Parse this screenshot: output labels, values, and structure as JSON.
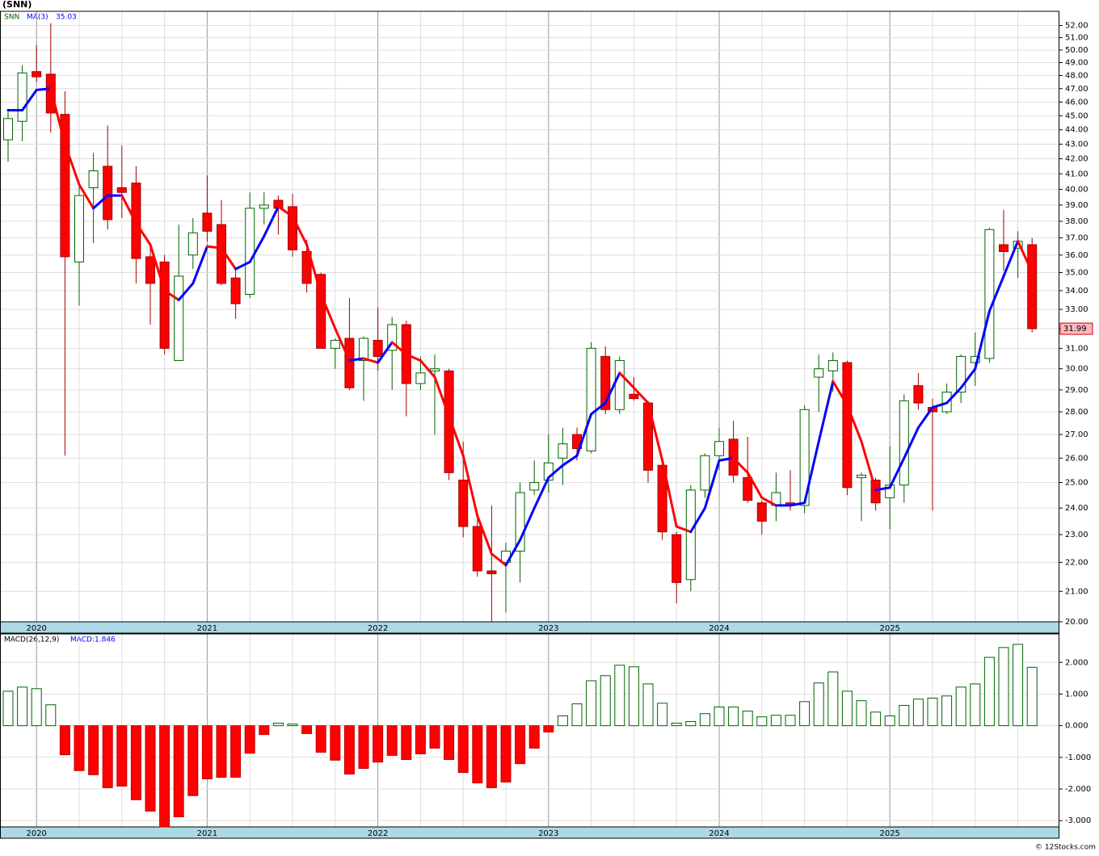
{
  "chart_data": [
    {
      "type": "candlestick",
      "title": "(SNN)",
      "ticker": "SNN",
      "categories": [
        null,
        null,
        "2020",
        null,
        null,
        null,
        null,
        null,
        null,
        null,
        null,
        null,
        null,
        null,
        "2021",
        null,
        null,
        null,
        null,
        null,
        null,
        null,
        null,
        null,
        null,
        null,
        "2022",
        null,
        null,
        null,
        null,
        null,
        null,
        null,
        null,
        null,
        null,
        null,
        "2023",
        null,
        null,
        null,
        null,
        null,
        null,
        null,
        null,
        null,
        null,
        null,
        "2024",
        null,
        null,
        null,
        null,
        null,
        null,
        null,
        null,
        null,
        null,
        null,
        "2025",
        null,
        null,
        null,
        null,
        null,
        null,
        null,
        null,
        null,
        null
      ],
      "open": [
        43.3,
        44.6,
        48.3,
        48.1,
        45.1,
        35.6,
        40.1,
        41.5,
        40.1,
        40.4,
        35.9,
        35.6,
        30.4,
        36.0,
        38.5,
        37.8,
        34.7,
        33.8,
        38.8,
        39.3,
        38.9,
        36.2,
        34.9,
        31.0,
        31.5,
        30.4,
        31.4,
        30.9,
        32.2,
        29.3,
        29.9,
        29.9,
        25.1,
        23.3,
        21.7,
        22.0,
        22.4,
        24.7,
        25.1,
        26.0,
        27.0,
        26.3,
        30.6,
        28.1,
        28.8,
        28.4,
        25.7,
        23.0,
        21.4,
        24.7,
        26.1,
        26.8,
        25.2,
        24.2,
        24.1,
        24.2,
        24.1,
        29.6,
        29.9,
        30.3,
        25.2,
        25.1,
        24.4,
        24.9,
        29.2,
        28.2,
        28.0,
        28.9,
        30.3,
        30.5,
        36.6,
        36.4,
        36.6
      ],
      "high": [
        45.5,
        48.8,
        50.4,
        52.2,
        46.8,
        40.5,
        42.4,
        44.3,
        42.9,
        41.5,
        36.6,
        36.0,
        37.8,
        38.2,
        40.9,
        39.3,
        35.2,
        39.8,
        39.8,
        39.6,
        39.7,
        36.9,
        35.0,
        31.5,
        33.6,
        31.6,
        33.1,
        32.6,
        32.4,
        30.6,
        30.7,
        30.0,
        26.7,
        23.8,
        24.1,
        22.7,
        25.0,
        25.9,
        27.0,
        27.3,
        27.3,
        31.3,
        31.1,
        30.6,
        29.6,
        28.5,
        25.9,
        23.1,
        24.9,
        26.2,
        27.3,
        27.6,
        26.9,
        24.3,
        25.4,
        25.5,
        28.3,
        30.7,
        30.8,
        30.4,
        25.4,
        25.2,
        26.5,
        28.8,
        29.8,
        28.6,
        29.3,
        30.7,
        31.8,
        37.6,
        38.7,
        37.4,
        37.0
      ],
      "low": [
        41.8,
        43.2,
        47.5,
        43.8,
        26.1,
        33.2,
        36.7,
        37.5,
        38.2,
        34.4,
        32.2,
        30.7,
        30.4,
        35.2,
        36.8,
        34.3,
        32.5,
        33.6,
        37.8,
        37.2,
        35.9,
        33.9,
        31.0,
        30.0,
        29.0,
        28.5,
        29.9,
        29.0,
        27.8,
        29.0,
        27.0,
        25.1,
        22.9,
        21.5,
        20.0,
        20.3,
        21.3,
        24.5,
        24.6,
        24.9,
        25.9,
        26.2,
        27.9,
        27.9,
        28.5,
        25.0,
        22.8,
        20.6,
        21.0,
        24.4,
        25.5,
        25.0,
        24.2,
        23.0,
        23.5,
        23.9,
        23.8,
        28.0,
        28.9,
        24.5,
        23.5,
        23.9,
        23.2,
        24.2,
        28.1,
        23.9,
        27.9,
        28.4,
        29.2,
        30.3,
        35.1,
        34.7,
        31.8
      ],
      "close": [
        44.8,
        48.2,
        47.9,
        45.2,
        35.9,
        39.6,
        41.2,
        38.1,
        39.8,
        35.8,
        34.4,
        31.0,
        34.8,
        37.3,
        37.4,
        34.4,
        33.3,
        38.8,
        39.0,
        38.8,
        36.3,
        34.4,
        31.0,
        31.4,
        29.1,
        31.5,
        30.6,
        32.2,
        29.3,
        29.8,
        30.0,
        25.4,
        23.3,
        21.7,
        21.6,
        22.4,
        24.6,
        25.0,
        25.8,
        26.6,
        26.4,
        31.0,
        28.1,
        30.4,
        28.6,
        25.5,
        23.1,
        21.3,
        24.7,
        26.1,
        26.7,
        25.3,
        24.3,
        23.5,
        24.6,
        24.1,
        28.1,
        30.0,
        30.4,
        24.8,
        25.3,
        24.2,
        24.9,
        28.5,
        28.4,
        28.0,
        28.9,
        30.6,
        30.6,
        37.5,
        36.2,
        36.8,
        31.99
      ],
      "up_color": "#006400",
      "down_color": "#ff0000",
      "ma": {
        "name": "MA(3)",
        "rising_color": "#0000ff",
        "falling_color": "#ff0000",
        "values": [
          45.4,
          45.4,
          46.9,
          47.0,
          43.0,
          40.3,
          38.8,
          39.6,
          39.6,
          37.9,
          36.6,
          34.0,
          33.5,
          34.4,
          36.5,
          36.4,
          35.2,
          35.6,
          37.1,
          38.9,
          38.3,
          36.6,
          33.8,
          32.0,
          30.4,
          30.5,
          30.3,
          31.3,
          30.7,
          30.4,
          29.6,
          27.8,
          26.1,
          23.7,
          22.3,
          21.9,
          22.8,
          24.0,
          25.2,
          25.7,
          26.1,
          27.9,
          28.4,
          29.8,
          29.1,
          28.4,
          25.9,
          23.3,
          23.1,
          24.0,
          25.9,
          26.0,
          25.4,
          24.4,
          24.1,
          24.1,
          24.2,
          26.7,
          29.4,
          28.3,
          26.7,
          24.7,
          24.8,
          26.0,
          27.3,
          28.2,
          28.4,
          29.1,
          30.0,
          32.9,
          34.8,
          36.8,
          35.03
        ]
      },
      "log_scale": true,
      "ylim": [
        20,
        53.2
      ],
      "yticks": [
        {
          "value": 20,
          "label": "20.00"
        },
        {
          "value": 21,
          "label": "21.00"
        },
        {
          "value": 22,
          "label": "22.00"
        },
        {
          "value": 23,
          "label": "23.00"
        },
        {
          "value": 24,
          "label": "24.00"
        },
        {
          "value": 25,
          "label": "25.00"
        },
        {
          "value": 26,
          "label": "26.00"
        },
        {
          "value": 27,
          "label": "27.00"
        },
        {
          "value": 28,
          "label": "28.00"
        },
        {
          "value": 29,
          "label": "29.00"
        },
        {
          "value": 30,
          "label": "30.00"
        },
        {
          "value": 31,
          "label": "31.00"
        },
        {
          "value": 32,
          "label": "32.00"
        },
        {
          "value": 33,
          "label": "33.00"
        },
        {
          "value": 34,
          "label": "34.00"
        },
        {
          "value": 35,
          "label": "35.00"
        },
        {
          "value": 36,
          "label": "36.00"
        },
        {
          "value": 37,
          "label": "37.00"
        },
        {
          "value": 38,
          "label": "38.00"
        },
        {
          "value": 39,
          "label": "39.00"
        },
        {
          "value": 40,
          "label": "40.00"
        },
        {
          "value": 41,
          "label": "41.00"
        },
        {
          "value": 42,
          "label": "42.00"
        },
        {
          "value": 43,
          "label": "43.00"
        },
        {
          "value": 44,
          "label": "44.00"
        },
        {
          "value": 45,
          "label": "45.00"
        },
        {
          "value": 46,
          "label": "46.00"
        },
        {
          "value": 47,
          "label": "47.00"
        },
        {
          "value": 48,
          "label": "48.00"
        },
        {
          "value": 49,
          "label": "49.00"
        },
        {
          "value": 50,
          "label": "50.00"
        },
        {
          "value": 51,
          "label": "51.00"
        },
        {
          "value": 52,
          "label": "52.00"
        }
      ],
      "grid": true
    },
    {
      "type": "bar",
      "title": "MACD(26,12,9)",
      "legend": "MACD:1.846",
      "categories": [
        null,
        null,
        "2020",
        null,
        null,
        null,
        null,
        null,
        null,
        null,
        null,
        null,
        null,
        null,
        "2021",
        null,
        null,
        null,
        null,
        null,
        null,
        null,
        null,
        null,
        null,
        null,
        "2022",
        null,
        null,
        null,
        null,
        null,
        null,
        null,
        null,
        null,
        null,
        null,
        "2023",
        null,
        null,
        null,
        null,
        null,
        null,
        null,
        null,
        null,
        null,
        null,
        "2024",
        null,
        null,
        null,
        null,
        null,
        null,
        null,
        null,
        null,
        null,
        null,
        "2025",
        null,
        null,
        null,
        null,
        null,
        null,
        null,
        null,
        null,
        null
      ],
      "values": [
        1.09,
        1.22,
        1.17,
        0.66,
        -0.92,
        -1.42,
        -1.55,
        -1.96,
        -1.91,
        -2.34,
        -2.7,
        -3.2,
        -2.88,
        -2.21,
        -1.68,
        -1.63,
        -1.63,
        -0.87,
        -0.28,
        0.08,
        0.05,
        -0.25,
        -0.84,
        -1.09,
        -1.53,
        -1.35,
        -1.15,
        -0.94,
        -1.07,
        -0.89,
        -0.71,
        -1.07,
        -1.48,
        -1.81,
        -1.96,
        -1.78,
        -1.2,
        -0.71,
        -0.2,
        0.31,
        0.69,
        1.42,
        1.58,
        1.91,
        1.86,
        1.32,
        0.71,
        0.08,
        0.13,
        0.38,
        0.59,
        0.59,
        0.46,
        0.28,
        0.33,
        0.33,
        0.76,
        1.35,
        1.7,
        1.09,
        0.79,
        0.43,
        0.31,
        0.64,
        0.84,
        0.87,
        0.94,
        1.22,
        1.32,
        2.16,
        2.47,
        2.57,
        1.846
      ],
      "up_color": "#006400",
      "down_color": "#ff0000",
      "ylim": [
        -3.2,
        2.9
      ],
      "yticks": [
        {
          "value": 2,
          "label": "2.000"
        },
        {
          "value": 1,
          "label": "1.000"
        },
        {
          "value": 0,
          "label": "0.000"
        },
        {
          "value": -1,
          "label": "-1.000"
        },
        {
          "value": -2,
          "label": "-2.000"
        },
        {
          "value": -3,
          "label": "-3.000"
        }
      ],
      "grid": true
    }
  ],
  "footer": "© 12Stocks.com"
}
